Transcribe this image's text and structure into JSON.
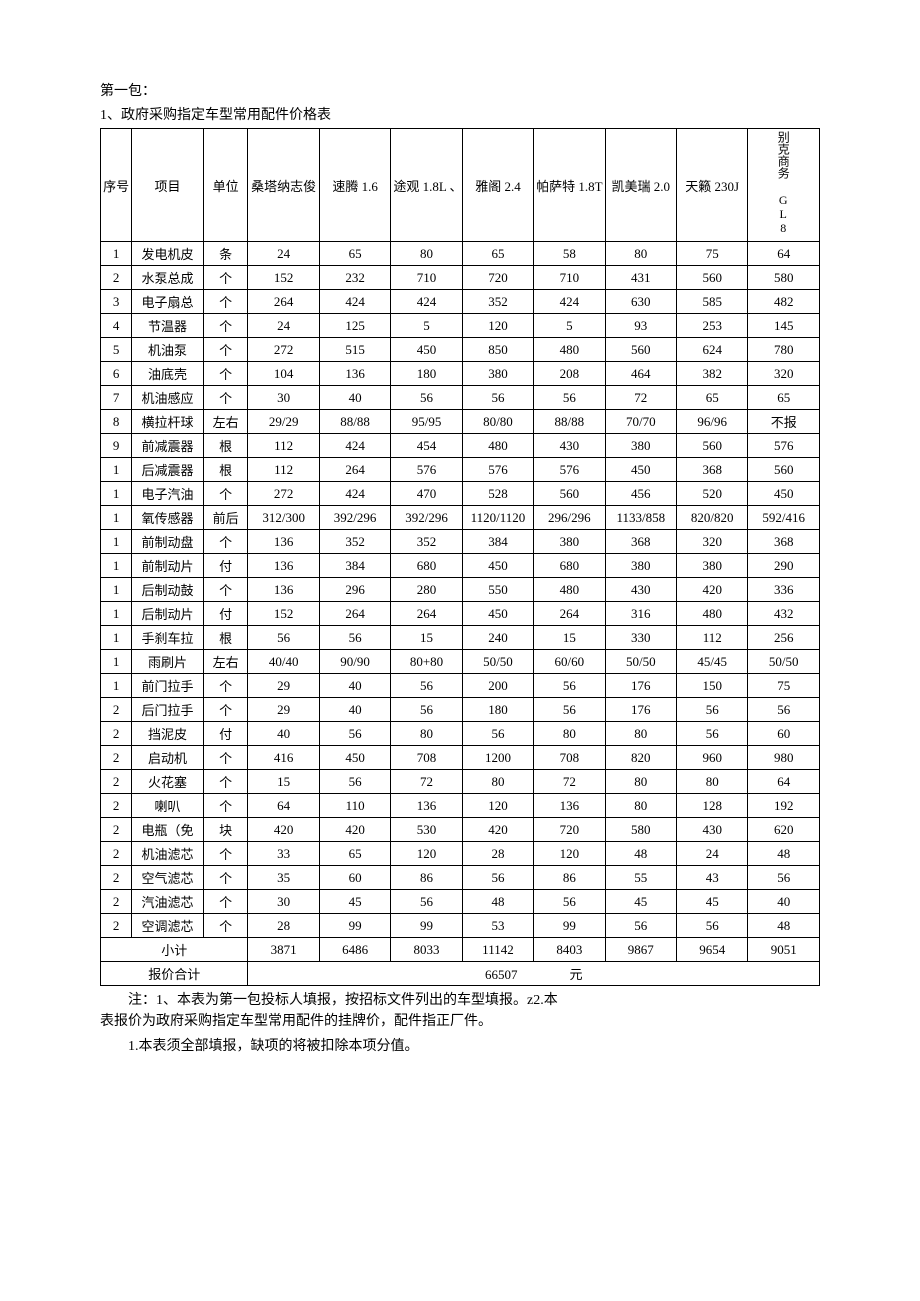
{
  "header": {
    "package": "第一包：",
    "title": "1、政府采购指定车型常用配件价格表"
  },
  "columns": {
    "seq": "序号",
    "item": "项目",
    "unit": "单位",
    "cars": [
      "桑塔纳志俊",
      "速腾 1.6",
      "途观 1.8L 、",
      "雅阁 2.4",
      "帕萨特 1.8T",
      "凯美瑞 2.0",
      "天籁 230J",
      "别克商务 GL8"
    ]
  },
  "rows": [
    {
      "seq": "1",
      "item": "发电机皮",
      "unit": "条",
      "v": [
        "24",
        "65",
        "80",
        "65",
        "58",
        "80",
        "75",
        "64"
      ]
    },
    {
      "seq": "2",
      "item": "水泵总成",
      "unit": "个",
      "v": [
        "152",
        "232",
        "710",
        "720",
        "710",
        "431",
        "560",
        "580"
      ]
    },
    {
      "seq": "3",
      "item": "电子扇总",
      "unit": "个",
      "v": [
        "264",
        "424",
        "424",
        "352",
        "424",
        "630",
        "585",
        "482"
      ]
    },
    {
      "seq": "4",
      "item": "节温器",
      "unit": "个",
      "v": [
        "24",
        "125",
        "5",
        "120",
        "5",
        "93",
        "253",
        "145"
      ]
    },
    {
      "seq": "5",
      "item": "机油泵",
      "unit": "个",
      "v": [
        "272",
        "515",
        "450",
        "850",
        "480",
        "560",
        "624",
        "780"
      ]
    },
    {
      "seq": "6",
      "item": "油底壳",
      "unit": "个",
      "v": [
        "104",
        "136",
        "180",
        "380",
        "208",
        "464",
        "382",
        "320"
      ]
    },
    {
      "seq": "7",
      "item": "机油感应",
      "unit": "个",
      "v": [
        "30",
        "40",
        "56",
        "56",
        "56",
        "72",
        "65",
        "65"
      ]
    },
    {
      "seq": "8",
      "item": "横拉杆球",
      "unit": "左右",
      "v": [
        "29/29",
        "88/88",
        "95/95",
        "80/80",
        "88/88",
        "70/70",
        "96/96",
        "不报"
      ]
    },
    {
      "seq": "9",
      "item": "前减震器",
      "unit": "根",
      "v": [
        "112",
        "424",
        "454",
        "480",
        "430",
        "380",
        "560",
        "576"
      ]
    },
    {
      "seq": "1",
      "item": "后减震器",
      "unit": "根",
      "v": [
        "112",
        "264",
        "576",
        "576",
        "576",
        "450",
        "368",
        "560"
      ]
    },
    {
      "seq": "1",
      "item": "电子汽油",
      "unit": "个",
      "v": [
        "272",
        "424",
        "470",
        "528",
        "560",
        "456",
        "520",
        "450"
      ]
    },
    {
      "seq": "1",
      "item": "氧传感器",
      "unit": "前后",
      "v": [
        "312/300",
        "392/296",
        "392/296",
        "1120/1120",
        "296/296",
        "1133/858",
        "820/820",
        "592/416"
      ]
    },
    {
      "seq": "1",
      "item": "前制动盘",
      "unit": "个",
      "v": [
        "136",
        "352",
        "352",
        "384",
        "380",
        "368",
        "320",
        "368"
      ]
    },
    {
      "seq": "1",
      "item": "前制动片",
      "unit": "付",
      "v": [
        "136",
        "384",
        "680",
        "450",
        "680",
        "380",
        "380",
        "290"
      ]
    },
    {
      "seq": "1",
      "item": "后制动鼓",
      "unit": "个",
      "v": [
        "136",
        "296",
        "280",
        "550",
        "480",
        "430",
        "420",
        "336"
      ]
    },
    {
      "seq": "1",
      "item": "后制动片",
      "unit": "付",
      "v": [
        "152",
        "264",
        "264",
        "450",
        "264",
        "316",
        "480",
        "432"
      ]
    },
    {
      "seq": "1",
      "item": "手刹车拉",
      "unit": "根",
      "v": [
        "56",
        "56",
        "15",
        "240",
        "15",
        "330",
        "112",
        "256"
      ]
    },
    {
      "seq": "1",
      "item": "雨刷片",
      "unit": "左右",
      "v": [
        "40/40",
        "90/90",
        "80+80",
        "50/50",
        "60/60",
        "50/50",
        "45/45",
        "50/50"
      ]
    },
    {
      "seq": "1",
      "item": "前门拉手",
      "unit": "个",
      "v": [
        "29",
        "40",
        "56",
        "200",
        "56",
        "176",
        "150",
        "75"
      ]
    },
    {
      "seq": "2",
      "item": "后门拉手",
      "unit": "个",
      "v": [
        "29",
        "40",
        "56",
        "180",
        "56",
        "176",
        "56",
        "56"
      ]
    },
    {
      "seq": "2",
      "item": "挡泥皮",
      "unit": "付",
      "v": [
        "40",
        "56",
        "80",
        "56",
        "80",
        "80",
        "56",
        "60"
      ]
    },
    {
      "seq": "2",
      "item": "启动机",
      "unit": "个",
      "v": [
        "416",
        "450",
        "708",
        "1200",
        "708",
        "820",
        "960",
        "980"
      ]
    },
    {
      "seq": "2",
      "item": "火花塞",
      "unit": "个",
      "v": [
        "15",
        "56",
        "72",
        "80",
        "72",
        "80",
        "80",
        "64"
      ]
    },
    {
      "seq": "2",
      "item": "喇叭",
      "unit": "个",
      "v": [
        "64",
        "110",
        "136",
        "120",
        "136",
        "80",
        "128",
        "192"
      ]
    },
    {
      "seq": "2",
      "item": "电瓶（免",
      "unit": "块",
      "v": [
        "420",
        "420",
        "530",
        "420",
        "720",
        "580",
        "430",
        "620"
      ]
    },
    {
      "seq": "2",
      "item": "机油滤芯",
      "unit": "个",
      "v": [
        "33",
        "65",
        "120",
        "28",
        "120",
        "48",
        "24",
        "48"
      ]
    },
    {
      "seq": "2",
      "item": "空气滤芯",
      "unit": "个",
      "v": [
        "35",
        "60",
        "86",
        "56",
        "86",
        "55",
        "43",
        "56"
      ]
    },
    {
      "seq": "2",
      "item": "汽油滤芯",
      "unit": "个",
      "v": [
        "30",
        "45",
        "56",
        "48",
        "56",
        "45",
        "45",
        "40"
      ]
    },
    {
      "seq": "2",
      "item": "空调滤芯",
      "unit": "个",
      "v": [
        "28",
        "99",
        "99",
        "53",
        "99",
        "56",
        "56",
        "48"
      ]
    }
  ],
  "subtotal": {
    "label": "小计",
    "values": [
      "3871",
      "6486",
      "8033",
      "11142",
      "8403",
      "9867",
      "9654",
      "9051"
    ]
  },
  "total": {
    "label": "报价合计",
    "value": "66507",
    "unit": "元"
  },
  "notes": {
    "line1": "注：1、本表为第一包投标人填报，按招标文件列出的车型填报。z2.本",
    "line2": "表报价为政府采购指定车型常用配件的挂牌价，配件指正厂件。",
    "line3": "1.本表须全部填报，缺项的将被扣除本项分值。"
  }
}
